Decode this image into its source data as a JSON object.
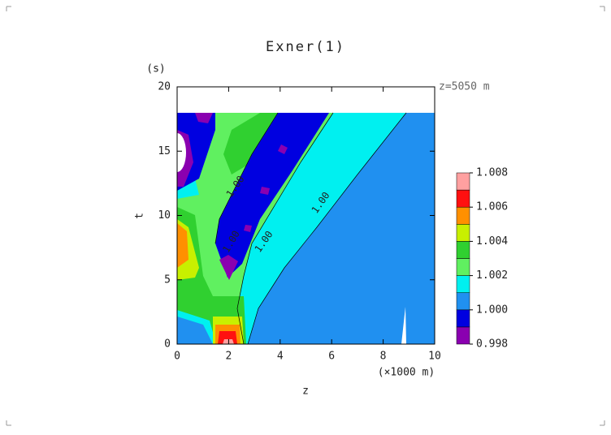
{
  "chart_data": {
    "type": "contour",
    "title": "Exner(1)",
    "y_unit": "(s)",
    "subtitle": "z=5050 m",
    "x_label": "z",
    "x_unit": "(×1000 m)",
    "y_label": "t",
    "xlim": [
      0,
      10
    ],
    "xticks": [
      0,
      2,
      4,
      6,
      8,
      10
    ],
    "ylim": [
      0,
      20
    ],
    "yticks": [
      0,
      5,
      10,
      15,
      20
    ],
    "levels": [
      0.998,
      0.999,
      1,
      1.001,
      1.002,
      1.003,
      1.004,
      1.005,
      1.006,
      1.007,
      1.008
    ],
    "colors": [
      "#8a00b0",
      "#0000e0",
      "#2090f0",
      "#00f0f0",
      "#60f060",
      "#30d030",
      "#c8f000",
      "#ff9000",
      "#ff1010",
      "#ffa0a0"
    ],
    "cticks": [
      0.998,
      {
        "value": 1,
        "label": "1.000"
      },
      1.002,
      1.004,
      1.006,
      1.008
    ],
    "contour_labels": [
      "1.00",
      "1.00",
      "1.00",
      "1.00"
    ]
  }
}
